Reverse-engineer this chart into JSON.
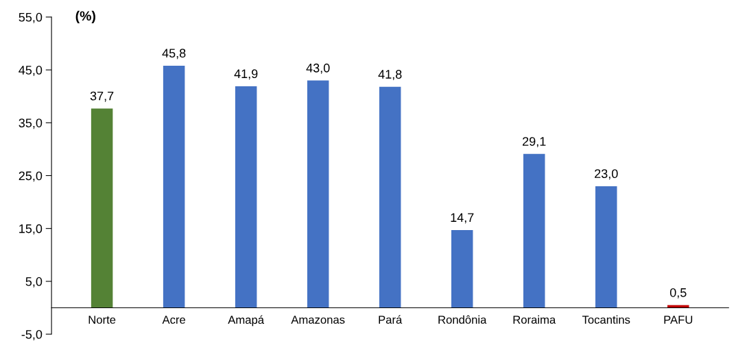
{
  "chart_data": {
    "type": "bar",
    "ylabel": "(%)",
    "categories": [
      "Norte",
      "Acre",
      "Amapá",
      "Amazonas",
      "Pará",
      "Rondônia",
      "Roraima",
      "Tocantins",
      "PAFU"
    ],
    "values": [
      37.7,
      45.8,
      41.9,
      43.0,
      41.8,
      14.7,
      29.1,
      23.0,
      0.5
    ],
    "value_labels": [
      "37,7",
      "45,8",
      "41,9",
      "43,0",
      "41,8",
      "14,7",
      "29,1",
      "23,0",
      "0,5"
    ],
    "colors": [
      "#548235",
      "#4472c4",
      "#4472c4",
      "#4472c4",
      "#4472c4",
      "#4472c4",
      "#4472c4",
      "#4472c4",
      "#c00000"
    ],
    "ylim": [
      -5,
      55
    ],
    "yticks": [
      {
        "value": -5,
        "label": "-5,0"
      },
      {
        "value": 5,
        "label": "5,0"
      },
      {
        "value": 15,
        "label": "15,0"
      },
      {
        "value": 25,
        "label": "25,0"
      },
      {
        "value": 35,
        "label": "35,0"
      },
      {
        "value": 45,
        "label": "45,0"
      },
      {
        "value": 55,
        "label": "55,0"
      }
    ],
    "grid": false,
    "legend": false
  }
}
